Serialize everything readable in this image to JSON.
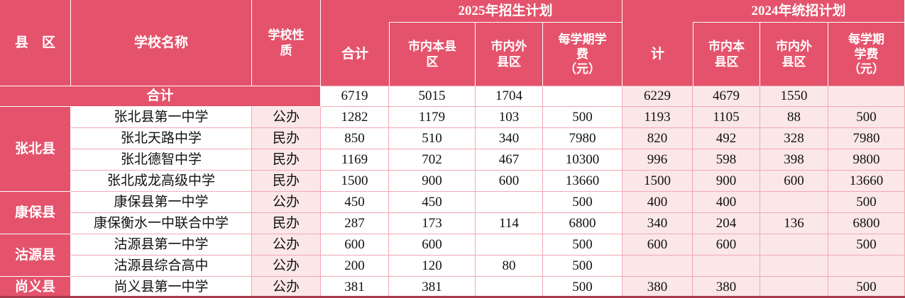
{
  "table": {
    "header": {
      "county": "县　区",
      "school_name": "学校名称",
      "school_type": "学校性\n质",
      "group_2025": "2025年招生计划",
      "group_2024": "2024年统招计划",
      "total_2025": "合计",
      "total_2024": "计",
      "sub_2025": [
        "市内本县\n区",
        "市内外\n县区",
        "每学期学\n费\n（元）"
      ],
      "sub_2024": [
        "市内本\n县区",
        "市内外\n县区",
        "每学期\n学费\n（元）"
      ]
    },
    "summary_row": {
      "label": "合计",
      "y2025": [
        "6719",
        "5015",
        "1704",
        ""
      ],
      "y2024": [
        "6229",
        "4679",
        "1550",
        ""
      ]
    },
    "groups": [
      {
        "county": "张北县",
        "schools": [
          {
            "name": "张北县第一中学",
            "type": "公办",
            "y2025": [
              "1282",
              "1179",
              "103",
              "500"
            ],
            "y2024": [
              "1193",
              "1105",
              "88",
              "500"
            ]
          },
          {
            "name": "张北天路中学",
            "type": "民办",
            "y2025": [
              "850",
              "510",
              "340",
              "7980"
            ],
            "y2024": [
              "820",
              "492",
              "328",
              "7980"
            ]
          },
          {
            "name": "张北德智中学",
            "type": "民办",
            "y2025": [
              "1169",
              "702",
              "467",
              "10300"
            ],
            "y2024": [
              "996",
              "598",
              "398",
              "9800"
            ]
          },
          {
            "name": "张北成龙高级中学",
            "type": "民办",
            "y2025": [
              "1500",
              "900",
              "600",
              "13660"
            ],
            "y2024": [
              "1500",
              "900",
              "600",
              "13660"
            ]
          }
        ]
      },
      {
        "county": "康保县",
        "schools": [
          {
            "name": "康保县第一中学",
            "type": "公办",
            "y2025": [
              "450",
              "450",
              "",
              "500"
            ],
            "y2024": [
              "400",
              "400",
              "",
              "500"
            ]
          },
          {
            "name": "康保衡水一中联合中学",
            "type": "民办",
            "y2025": [
              "287",
              "173",
              "114",
              "6800"
            ],
            "y2024": [
              "340",
              "204",
              "136",
              "6800"
            ]
          }
        ]
      },
      {
        "county": "沽源县",
        "schools": [
          {
            "name": "沽源县第一中学",
            "type": "公办",
            "y2025": [
              "600",
              "600",
              "",
              "500"
            ],
            "y2024": [
              "600",
              "600",
              "",
              "500"
            ]
          },
          {
            "name": "沽源县综合高中",
            "type": "公办",
            "y2025": [
              "200",
              "120",
              "80",
              "500"
            ],
            "y2024": [
              "",
              "",
              "",
              ""
            ]
          }
        ]
      },
      {
        "county": "尚义县",
        "schools": [
          {
            "name": "尚义县第一中学",
            "type": "公办",
            "y2025": [
              "381",
              "381",
              "",
              "500"
            ],
            "y2024": [
              "380",
              "380",
              "",
              "500"
            ]
          }
        ]
      }
    ],
    "colors": {
      "header_red": "#E4536B",
      "light_pink": "#FBE7E8",
      "grid_pink": "#F3A8B4",
      "bottom_dark_red": "#A93A4D",
      "text_dark": "#111111",
      "header_text": "#FFFFFF"
    }
  }
}
